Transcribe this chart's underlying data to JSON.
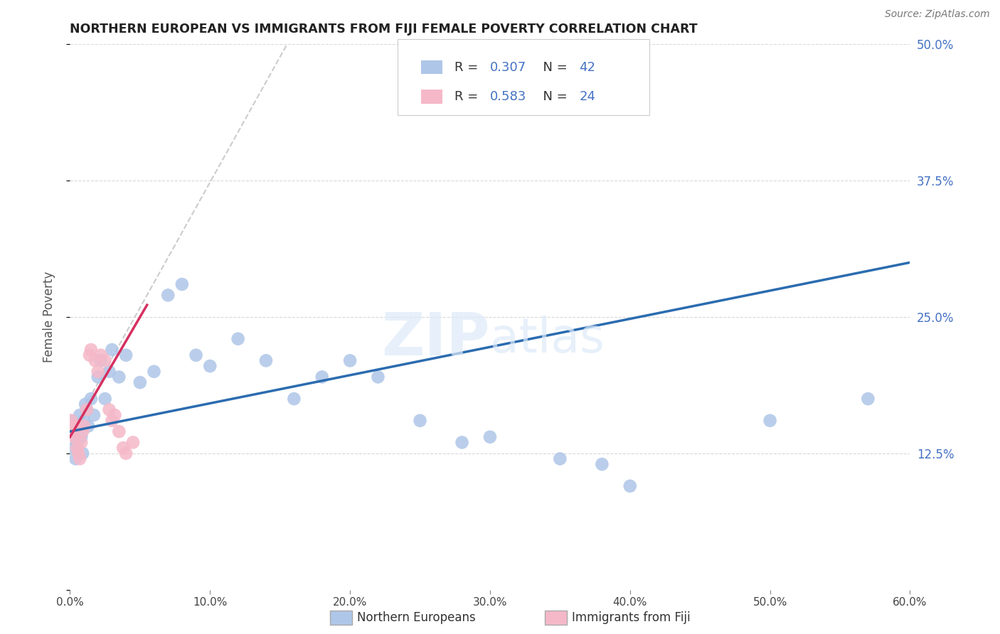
{
  "title": "NORTHERN EUROPEAN VS IMMIGRANTS FROM FIJI FEMALE POVERTY CORRELATION CHART",
  "source": "Source: ZipAtlas.com",
  "ylabel": "Female Poverty",
  "xlim": [
    0.0,
    0.6
  ],
  "ylim": [
    0.0,
    0.5
  ],
  "xticks": [
    0.0,
    0.1,
    0.2,
    0.3,
    0.4,
    0.5,
    0.6
  ],
  "xticklabels": [
    "0.0%",
    "10.0%",
    "20.0%",
    "30.0%",
    "40.0%",
    "50.0%",
    "60.0%"
  ],
  "yticks": [
    0.0,
    0.125,
    0.25,
    0.375,
    0.5
  ],
  "yticklabels_right": [
    "",
    "12.5%",
    "25.0%",
    "37.5%",
    "50.0%"
  ],
  "blue_R": 0.307,
  "blue_N": 42,
  "pink_R": 0.583,
  "pink_N": 24,
  "blue_color": "#aec6e8",
  "blue_line_color": "#2b6cb0",
  "pink_color": "#f5b8c8",
  "pink_line_color": "#d63060",
  "dash_color": "#cccccc",
  "watermark_color": "#ddeaf8",
  "blue_scatter_x": [
    0.001,
    0.002,
    0.003,
    0.004,
    0.005,
    0.006,
    0.007,
    0.008,
    0.009,
    0.01,
    0.011,
    0.012,
    0.013,
    0.015,
    0.017,
    0.02,
    0.022,
    0.025,
    0.028,
    0.03,
    0.035,
    0.04,
    0.05,
    0.06,
    0.07,
    0.08,
    0.09,
    0.1,
    0.12,
    0.14,
    0.16,
    0.18,
    0.2,
    0.22,
    0.25,
    0.28,
    0.3,
    0.35,
    0.38,
    0.4,
    0.5,
    0.57
  ],
  "blue_scatter_y": [
    0.155,
    0.145,
    0.13,
    0.12,
    0.135,
    0.15,
    0.16,
    0.14,
    0.125,
    0.155,
    0.17,
    0.165,
    0.15,
    0.175,
    0.16,
    0.195,
    0.21,
    0.175,
    0.2,
    0.22,
    0.195,
    0.215,
    0.19,
    0.2,
    0.27,
    0.28,
    0.215,
    0.205,
    0.23,
    0.21,
    0.175,
    0.195,
    0.21,
    0.195,
    0.155,
    0.135,
    0.14,
    0.12,
    0.115,
    0.095,
    0.155,
    0.175
  ],
  "pink_scatter_x": [
    0.001,
    0.002,
    0.003,
    0.004,
    0.005,
    0.006,
    0.007,
    0.008,
    0.009,
    0.01,
    0.012,
    0.014,
    0.015,
    0.018,
    0.02,
    0.022,
    0.025,
    0.028,
    0.03,
    0.032,
    0.035,
    0.038,
    0.04,
    0.045
  ],
  "pink_scatter_y": [
    0.155,
    0.145,
    0.14,
    0.15,
    0.13,
    0.125,
    0.12,
    0.135,
    0.145,
    0.15,
    0.165,
    0.215,
    0.22,
    0.21,
    0.2,
    0.215,
    0.21,
    0.165,
    0.155,
    0.16,
    0.145,
    0.13,
    0.125,
    0.135
  ]
}
